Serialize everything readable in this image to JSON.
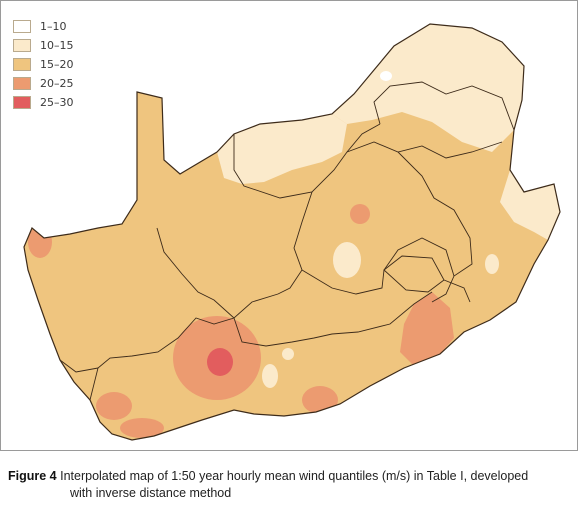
{
  "legend": {
    "items": [
      {
        "label": "1–10",
        "color": "#ffffff"
      },
      {
        "label": "10–15",
        "color": "#fbeacb"
      },
      {
        "label": "15–20",
        "color": "#efc57f"
      },
      {
        "label": "20–25",
        "color": "#ec9b70"
      },
      {
        "label": "25–30",
        "color": "#e25d5e"
      }
    ]
  },
  "caption": {
    "figure_label": "Figure 4",
    "text_line1": "Interpolated map of 1:50 year hourly mean wind quantiles (m/s) in Table I, developed",
    "text_line2": "with inverse distance method"
  },
  "colors": {
    "border_lines": "#3d2b1a",
    "frame": "#9a9a9a"
  }
}
